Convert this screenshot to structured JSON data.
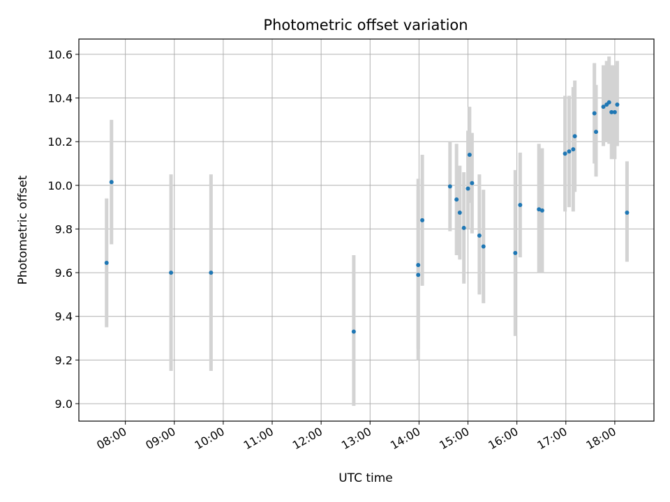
{
  "chart_data": {
    "type": "scatter",
    "title": "Photometric offset variation",
    "xlabel": "UTC time",
    "ylabel": "Photometric offset",
    "x_tick_labels": [
      "08:00",
      "09:00",
      "10:00",
      "11:00",
      "12:00",
      "13:00",
      "14:00",
      "15:00",
      "16:00",
      "17:00",
      "18:00"
    ],
    "x_tick_hours": [
      8,
      9,
      10,
      11,
      12,
      13,
      14,
      15,
      16,
      17,
      18
    ],
    "y_ticks": [
      9.0,
      9.2,
      9.4,
      9.6,
      9.8,
      10.0,
      10.2,
      10.4,
      10.6
    ],
    "y_tick_labels": [
      "9.0",
      "9.2",
      "9.4",
      "9.6",
      "9.8",
      "10.0",
      "10.2",
      "10.4",
      "10.6"
    ],
    "xlim": [
      "07:03",
      "18:48"
    ],
    "ylim": [
      8.92,
      10.67
    ],
    "grid": true,
    "colors": {
      "point": "#1f77b4",
      "errorbar": "#d3d3d3",
      "grid": "#b0b0b0"
    },
    "points": [
      {
        "t": "07:37",
        "y": 9.645,
        "lo": 9.35,
        "hi": 9.94
      },
      {
        "t": "07:43",
        "y": 10.015,
        "lo": 9.73,
        "hi": 10.3
      },
      {
        "t": "08:56",
        "y": 9.6,
        "lo": 9.15,
        "hi": 10.05
      },
      {
        "t": "09:45",
        "y": 9.6,
        "lo": 9.15,
        "hi": 10.05
      },
      {
        "t": "12:40",
        "y": 9.33,
        "lo": 8.99,
        "hi": 9.68
      },
      {
        "t": "13:59",
        "y": 9.59,
        "lo": 9.2,
        "hi": 9.98
      },
      {
        "t": "13:59",
        "y": 9.635,
        "lo": 9.25,
        "hi": 10.03
      },
      {
        "t": "14:04",
        "y": 9.84,
        "lo": 9.54,
        "hi": 10.14
      },
      {
        "t": "14:38",
        "y": 9.995,
        "lo": 9.79,
        "hi": 10.2
      },
      {
        "t": "14:46",
        "y": 9.935,
        "lo": 9.68,
        "hi": 10.19
      },
      {
        "t": "14:50",
        "y": 9.875,
        "lo": 9.66,
        "hi": 10.09
      },
      {
        "t": "14:55",
        "y": 9.805,
        "lo": 9.55,
        "hi": 10.06
      },
      {
        "t": "15:00",
        "y": 9.985,
        "lo": 9.8,
        "hi": 10.25
      },
      {
        "t": "15:02",
        "y": 10.14,
        "lo": 9.92,
        "hi": 10.36
      },
      {
        "t": "15:05",
        "y": 10.01,
        "lo": 9.78,
        "hi": 10.24
      },
      {
        "t": "15:14",
        "y": 9.77,
        "lo": 9.5,
        "hi": 10.05
      },
      {
        "t": "15:19",
        "y": 9.72,
        "lo": 9.46,
        "hi": 9.98
      },
      {
        "t": "15:58",
        "y": 9.69,
        "lo": 9.31,
        "hi": 10.07
      },
      {
        "t": "16:04",
        "y": 9.91,
        "lo": 9.67,
        "hi": 10.15
      },
      {
        "t": "16:27",
        "y": 9.89,
        "lo": 9.6,
        "hi": 10.19
      },
      {
        "t": "16:31",
        "y": 9.885,
        "lo": 9.6,
        "hi": 10.17
      },
      {
        "t": "16:59",
        "y": 10.145,
        "lo": 9.88,
        "hi": 10.41
      },
      {
        "t": "17:04",
        "y": 10.155,
        "lo": 9.9,
        "hi": 10.41
      },
      {
        "t": "17:09",
        "y": 10.165,
        "lo": 9.88,
        "hi": 10.45
      },
      {
        "t": "17:11",
        "y": 10.225,
        "lo": 9.97,
        "hi": 10.48
      },
      {
        "t": "17:35",
        "y": 10.33,
        "lo": 10.1,
        "hi": 10.56
      },
      {
        "t": "17:37",
        "y": 10.245,
        "lo": 10.04,
        "hi": 10.46
      },
      {
        "t": "17:46",
        "y": 10.36,
        "lo": 10.18,
        "hi": 10.55
      },
      {
        "t": "17:50",
        "y": 10.37,
        "lo": 10.2,
        "hi": 10.57
      },
      {
        "t": "17:53",
        "y": 10.38,
        "lo": 10.19,
        "hi": 10.59
      },
      {
        "t": "17:56",
        "y": 10.335,
        "lo": 10.12,
        "hi": 10.55
      },
      {
        "t": "18:00",
        "y": 10.335,
        "lo": 10.12,
        "hi": 10.55
      },
      {
        "t": "18:03",
        "y": 10.37,
        "lo": 10.18,
        "hi": 10.57
      },
      {
        "t": "18:15",
        "y": 9.875,
        "lo": 9.65,
        "hi": 10.11
      }
    ]
  }
}
